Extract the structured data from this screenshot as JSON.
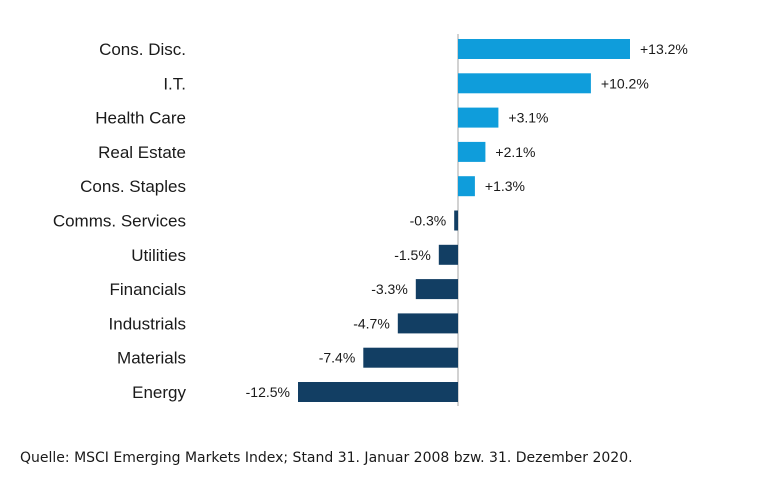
{
  "chart_data": {
    "type": "bar",
    "orientation": "horizontal",
    "categories": [
      "Cons. Disc.",
      "I.T.",
      "Health Care",
      "Real Estate",
      "Cons. Staples",
      "Comms. Services",
      "Utilities",
      "Financials",
      "Industrials",
      "Materials",
      "Energy"
    ],
    "values": [
      13.2,
      10.2,
      3.1,
      2.1,
      1.3,
      -0.3,
      -1.5,
      -3.3,
      -4.7,
      -7.4,
      -12.5
    ],
    "value_labels": [
      "+13.2%",
      "+10.2%",
      "+3.1%",
      "+2.1%",
      "+1.3%",
      "-0.3%",
      "-1.5%",
      "-3.3%",
      "-4.7%",
      "-7.4%",
      "-12.5%"
    ],
    "xlim": [
      -12.5,
      13.2
    ],
    "grid": false,
    "legend": "none",
    "colors": {
      "positive": "#0f9ddb",
      "negative": "#123e63",
      "axis": "#a6a6a6"
    }
  },
  "source_note": "Quelle: MSCI Emerging Markets Index; Stand 31. Januar 2008 bzw. 31. Dezember 2020."
}
